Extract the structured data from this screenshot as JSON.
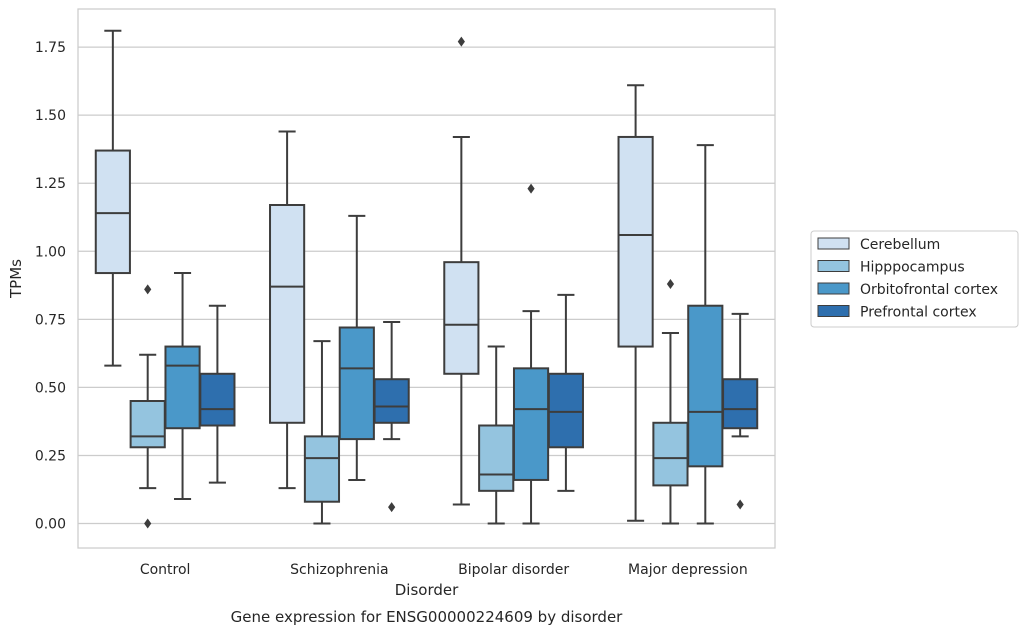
{
  "chart_data": {
    "type": "box",
    "title": "",
    "caption": "Gene expression for ENSG00000224609 by disorder",
    "xlabel": "Disorder",
    "ylabel": "TPMs",
    "ylim": [
      -0.09,
      1.89
    ],
    "yticks": [
      "0.00",
      "0.25",
      "0.50",
      "0.75",
      "1.00",
      "1.25",
      "1.50",
      "1.75"
    ],
    "grid": "horizontal",
    "legend_position": "right",
    "categories": [
      "Control",
      "Schizophrenia",
      "Bipolar disorder",
      "Major depression"
    ],
    "series": [
      {
        "name": "Cerebellum",
        "color": "#d0e1f2",
        "boxes": [
          {
            "whisker_low": 0.58,
            "q1": 0.92,
            "median": 1.14,
            "q3": 1.37,
            "whisker_high": 1.81,
            "outliers": []
          },
          {
            "whisker_low": 0.13,
            "q1": 0.37,
            "median": 0.87,
            "q3": 1.17,
            "whisker_high": 1.44,
            "outliers": []
          },
          {
            "whisker_low": 0.07,
            "q1": 0.55,
            "median": 0.73,
            "q3": 0.96,
            "whisker_high": 1.42,
            "outliers": [
              1.77
            ]
          },
          {
            "whisker_low": 0.01,
            "q1": 0.65,
            "median": 1.06,
            "q3": 1.42,
            "whisker_high": 1.61,
            "outliers": []
          }
        ]
      },
      {
        "name": "Hipppocampus",
        "color": "#94c4df",
        "boxes": [
          {
            "whisker_low": 0.13,
            "q1": 0.28,
            "median": 0.32,
            "q3": 0.45,
            "whisker_high": 0.62,
            "outliers": [
              0.86,
              0.0
            ]
          },
          {
            "whisker_low": 0.0,
            "q1": 0.08,
            "median": 0.24,
            "q3": 0.32,
            "whisker_high": 0.67,
            "outliers": []
          },
          {
            "whisker_low": 0.0,
            "q1": 0.12,
            "median": 0.18,
            "q3": 0.36,
            "whisker_high": 0.65,
            "outliers": []
          },
          {
            "whisker_low": 0.0,
            "q1": 0.14,
            "median": 0.24,
            "q3": 0.37,
            "whisker_high": 0.7,
            "outliers": [
              0.88
            ]
          }
        ]
      },
      {
        "name": "Orbitofrontal cortex",
        "color": "#4a98c9",
        "boxes": [
          {
            "whisker_low": 0.09,
            "q1": 0.35,
            "median": 0.58,
            "q3": 0.65,
            "whisker_high": 0.92,
            "outliers": []
          },
          {
            "whisker_low": 0.16,
            "q1": 0.31,
            "median": 0.57,
            "q3": 0.72,
            "whisker_high": 1.13,
            "outliers": []
          },
          {
            "whisker_low": 0.0,
            "q1": 0.16,
            "median": 0.42,
            "q3": 0.57,
            "whisker_high": 0.78,
            "outliers": [
              1.23
            ]
          },
          {
            "whisker_low": 0.0,
            "q1": 0.21,
            "median": 0.41,
            "q3": 0.8,
            "whisker_high": 1.39,
            "outliers": []
          }
        ]
      },
      {
        "name": "Prefrontal cortex",
        "color": "#2e6fae",
        "boxes": [
          {
            "whisker_low": 0.15,
            "q1": 0.36,
            "median": 0.42,
            "q3": 0.55,
            "whisker_high": 0.8,
            "outliers": []
          },
          {
            "whisker_low": 0.31,
            "q1": 0.37,
            "median": 0.43,
            "q3": 0.53,
            "whisker_high": 0.74,
            "outliers": [
              0.06
            ]
          },
          {
            "whisker_low": 0.12,
            "q1": 0.28,
            "median": 0.41,
            "q3": 0.55,
            "whisker_high": 0.84,
            "outliers": []
          },
          {
            "whisker_low": 0.32,
            "q1": 0.35,
            "median": 0.42,
            "q3": 0.53,
            "whisker_high": 0.77,
            "outliers": [
              0.07
            ]
          }
        ]
      }
    ]
  }
}
